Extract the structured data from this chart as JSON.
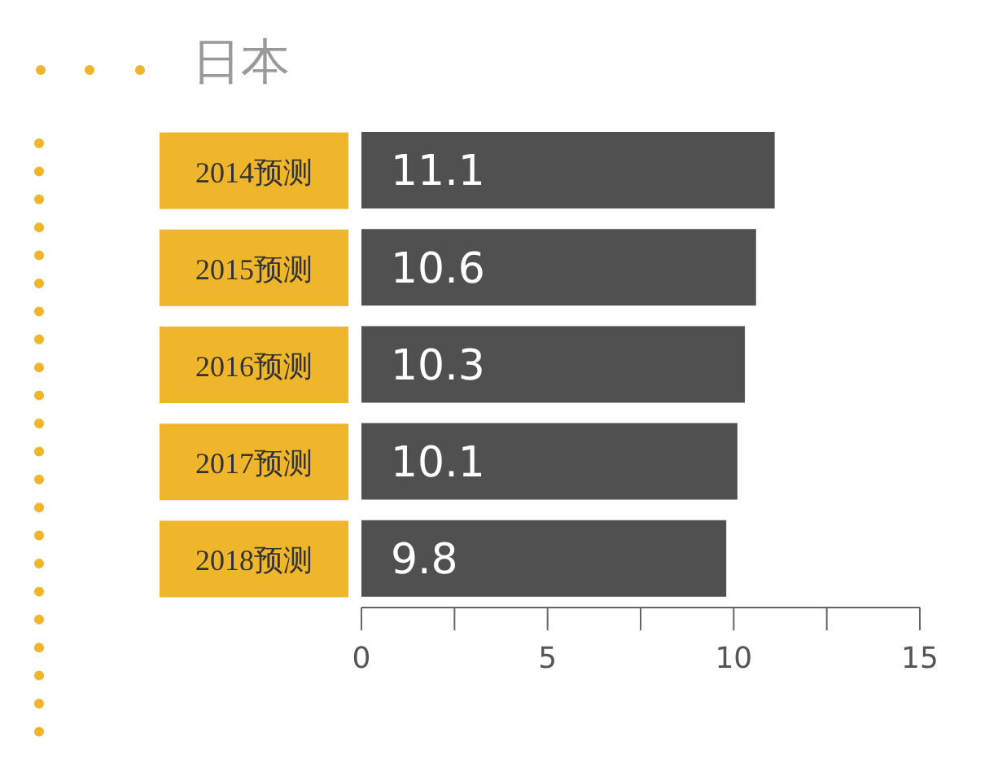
{
  "chart_data": {
    "type": "bar",
    "orientation": "horizontal",
    "title": "日本",
    "categories": [
      "2014预测",
      "2015预测",
      "2016预测",
      "2017预测",
      "2018预测"
    ],
    "series": [
      {
        "color": "#505050",
        "values": [
          11.1,
          10.6,
          10.3,
          10.1,
          9.8
        ]
      }
    ],
    "xlim": [
      0,
      15
    ],
    "xticks": [
      0,
      {
        "value": 2.5,
        "label": null
      },
      5,
      {
        "value": 7.5,
        "label": null
      },
      10,
      {
        "value": 12.5,
        "label": null
      },
      15
    ],
    "data_labels": true,
    "grid": false,
    "legend": false
  }
}
